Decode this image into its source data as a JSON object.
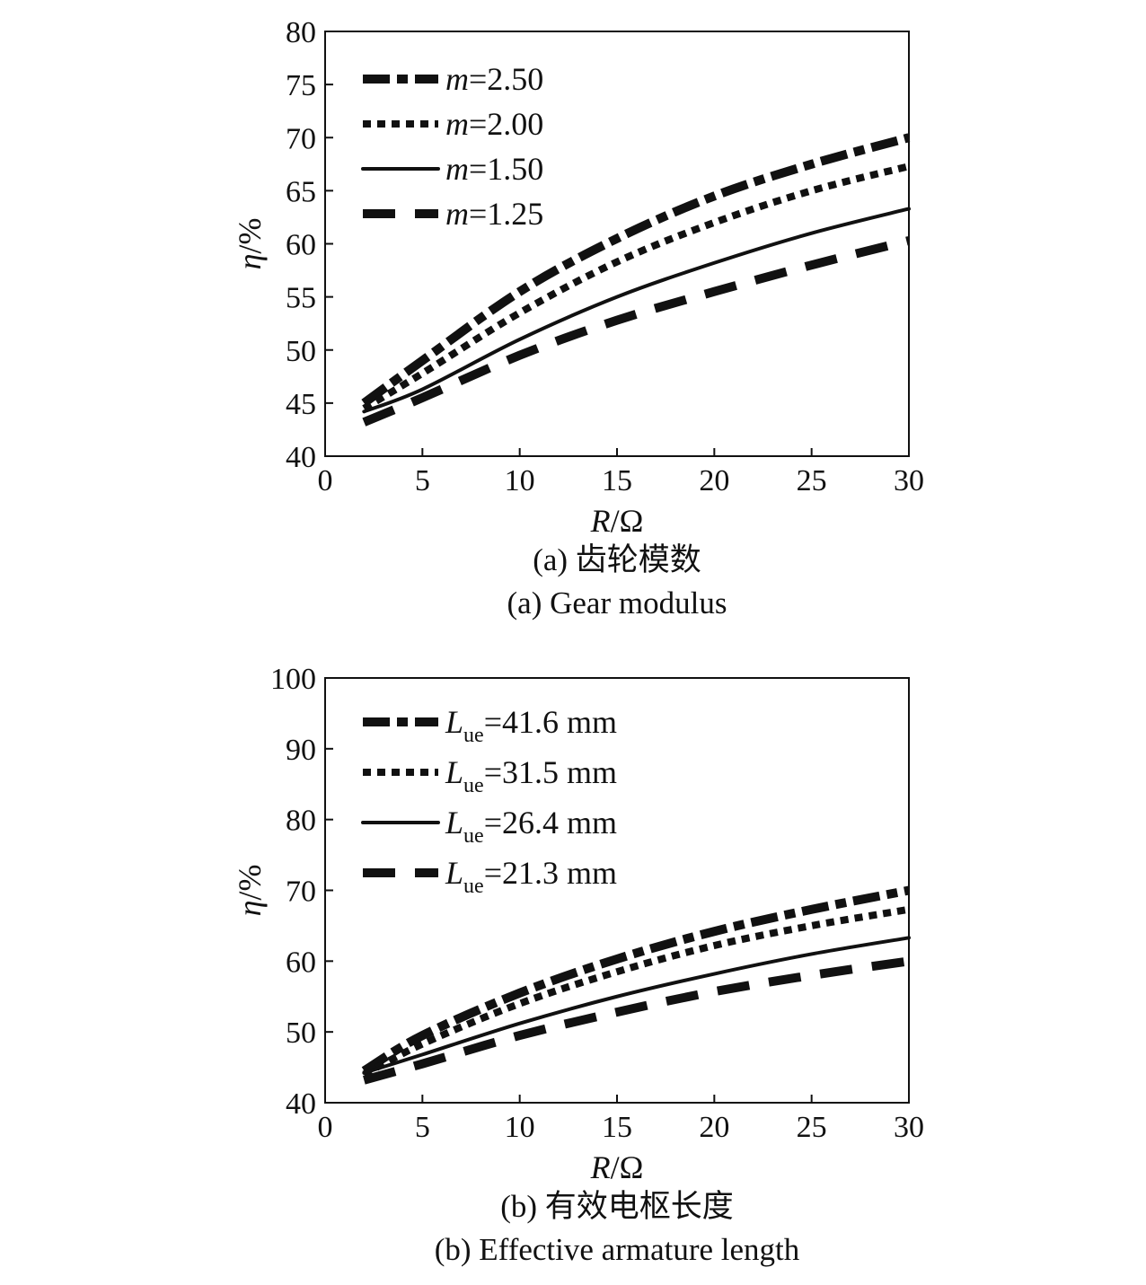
{
  "chart_data": [
    {
      "type": "line",
      "caption_cn": "(a) 齿轮模数",
      "caption_en": "(a) Gear modulus",
      "xlabel": "R/Ω",
      "ylabel": "η/%",
      "xlim": [
        0,
        30
      ],
      "ylim": [
        40,
        80
      ],
      "xticks": [
        0,
        5,
        10,
        15,
        20,
        25,
        30
      ],
      "yticks": [
        40,
        45,
        50,
        55,
        60,
        65,
        70,
        75,
        80
      ],
      "grid": false,
      "legend_position": "top-left",
      "x": [
        2,
        5,
        10,
        15,
        20,
        25,
        30
      ],
      "series": [
        {
          "name": "m=2.50",
          "name_var": "m",
          "name_sub": "",
          "name_val": "=2.50",
          "style": "dashdot-heavy",
          "values": [
            45,
            49,
            55.5,
            60.5,
            64.5,
            67.5,
            70
          ]
        },
        {
          "name": "m=2.00",
          "name_var": "m",
          "name_sub": "",
          "name_val": "=2.00",
          "style": "dotted",
          "values": [
            44.5,
            47.8,
            53.5,
            58.3,
            62,
            65,
            67.3
          ]
        },
        {
          "name": "m=1.50",
          "name_var": "m",
          "name_sub": "",
          "name_val": "=1.50",
          "style": "solid",
          "values": [
            44.2,
            46.3,
            51,
            55,
            58.2,
            61,
            63.3
          ]
        },
        {
          "name": "m=1.25",
          "name_var": "m",
          "name_sub": "",
          "name_val": "=1.25",
          "style": "dashed",
          "values": [
            43.2,
            45.5,
            49.5,
            52.8,
            55.5,
            58,
            60.3
          ]
        }
      ]
    },
    {
      "type": "line",
      "caption_cn": "(b) 有效电枢长度",
      "caption_en": "(b) Effective armature length",
      "xlabel": "R/Ω",
      "ylabel": "η/%",
      "xlim": [
        0,
        30
      ],
      "ylim": [
        40,
        100
      ],
      "xticks": [
        0,
        5,
        10,
        15,
        20,
        25,
        30
      ],
      "yticks": [
        40,
        50,
        60,
        70,
        80,
        90,
        100
      ],
      "grid": false,
      "legend_position": "top-left",
      "x": [
        2,
        5,
        10,
        15,
        20,
        25,
        30
      ],
      "series": [
        {
          "name": "Lue=41.6 mm",
          "name_var": "L",
          "name_sub": "ue",
          "name_val": "=41.6 mm",
          "style": "dashdot-heavy",
          "values": [
            44.5,
            49.5,
            55.5,
            60.3,
            64.2,
            67.3,
            70
          ]
        },
        {
          "name": "Lue=31.5 mm",
          "name_var": "L",
          "name_sub": "ue",
          "name_val": "=31.5 mm",
          "style": "dotted",
          "values": [
            44,
            48.3,
            54,
            58.5,
            62.2,
            65,
            67.3
          ]
        },
        {
          "name": "Lue=26.4 mm",
          "name_var": "L",
          "name_sub": "ue",
          "name_val": "=26.4 mm",
          "style": "solid",
          "values": [
            44.2,
            46.8,
            51.2,
            55,
            58.2,
            61,
            63.3
          ]
        },
        {
          "name": "Lue=21.3 mm",
          "name_var": "L",
          "name_sub": "ue",
          "name_val": "=21.3 mm",
          "style": "dashed",
          "values": [
            43.2,
            45.5,
            49.5,
            52.8,
            55.7,
            58,
            60
          ]
        }
      ]
    }
  ]
}
